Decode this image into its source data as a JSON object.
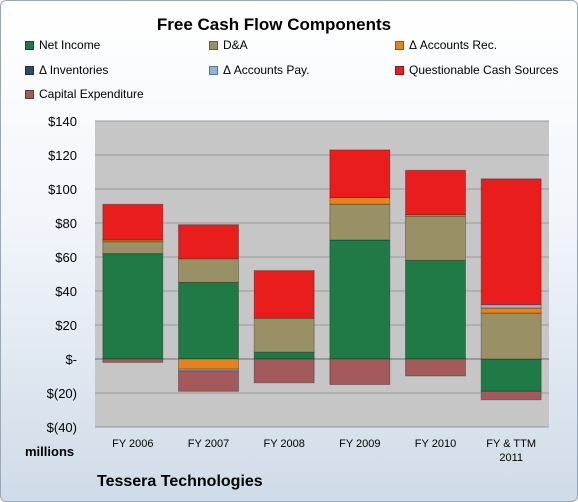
{
  "chart_data": {
    "type": "bar",
    "stacked": true,
    "title": "Free Cash Flow Components",
    "units_label": "millions",
    "company": "Tessera Technologies",
    "ylim": [
      -40,
      140
    ],
    "yticks": [
      140,
      120,
      100,
      80,
      60,
      40,
      20,
      0,
      -20,
      -40
    ],
    "ytick_labels": [
      "$140",
      "$120",
      "$100",
      "$80",
      "$60",
      "$40",
      "$20",
      "$-",
      "$(20)",
      "$(40)"
    ],
    "grid": true,
    "legend_position": "top",
    "categories": [
      "FY 2006",
      "FY 2007",
      "FY 2008",
      "FY 2009",
      "FY 2010",
      "FY & TTM 2011"
    ],
    "series": [
      {
        "name": "Net Income",
        "color": "#1f7a45",
        "values": [
          62,
          45,
          4,
          70,
          58,
          -19
        ]
      },
      {
        "name": "D&A",
        "color": "#9a9066",
        "values": [
          7,
          14,
          20,
          21,
          26,
          27
        ]
      },
      {
        "name": "Δ Accounts Rec.",
        "color": "#e6821e",
        "values": [
          1,
          -6,
          0,
          4,
          1,
          3
        ]
      },
      {
        "name": "Δ Inventories",
        "color": "#2e4a6b",
        "values": [
          0,
          0,
          0,
          0,
          0,
          0
        ]
      },
      {
        "name": "Δ Accounts Pay.",
        "color": "#8fb3e2",
        "values": [
          0,
          -1,
          0,
          0,
          0,
          2
        ]
      },
      {
        "name": "Questionable Cash Sources",
        "color": "#ea1d1d",
        "values": [
          21,
          20,
          28,
          28,
          26,
          74
        ]
      },
      {
        "name": "Capital Expenditure",
        "color": "#a45a5a",
        "values": [
          -2,
          -12,
          -14,
          -15,
          -10,
          -5
        ]
      }
    ]
  }
}
